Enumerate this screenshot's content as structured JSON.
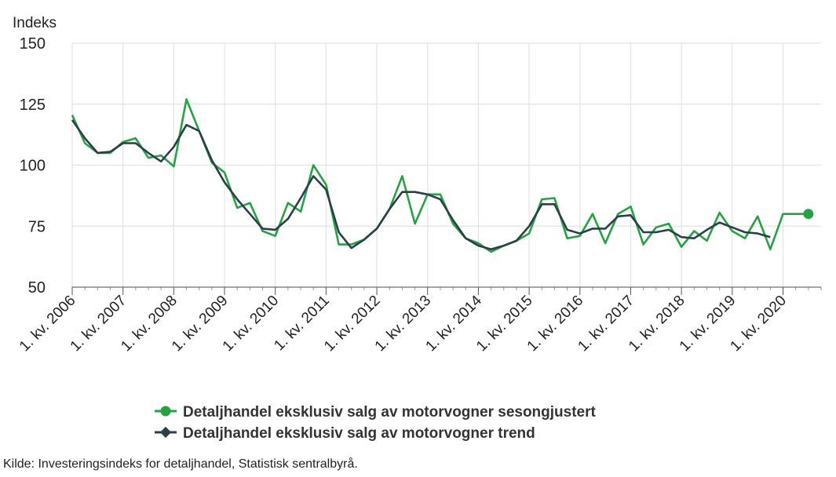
{
  "chart_data": {
    "type": "line",
    "ylabel": "Indeks",
    "ylim": [
      50,
      150
    ],
    "yticks": [
      "50",
      "75",
      "100",
      "125",
      "150"
    ],
    "xlim": [
      2006.0,
      2020.75
    ],
    "xticks": [
      "1. kv. 2006",
      "1. kv. 2007",
      "1. kv. 2008",
      "1. kv. 2009",
      "1. kv. 2010",
      "1. kv. 2011",
      "1. kv. 2012",
      "1. kv. 2013",
      "1. kv. 2014",
      "1. kv. 2015",
      "1. kv. 2016",
      "1. kv. 2017",
      "1. kv. 2018",
      "1. kv. 2019",
      "1. kv. 2020"
    ],
    "grid": true,
    "legend_position": "bottom",
    "series": [
      {
        "name": "Detaljhandel eksklusiv salg av motorvogner sesongjustert",
        "color": "#27a243",
        "marker_last": true,
        "x": [
          2006.0,
          2006.25,
          2006.5,
          2006.75,
          2007.0,
          2007.25,
          2007.5,
          2007.75,
          2008.0,
          2008.25,
          2008.5,
          2008.75,
          2009.0,
          2009.25,
          2009.5,
          2009.75,
          2010.0,
          2010.25,
          2010.5,
          2010.75,
          2011.0,
          2011.25,
          2011.5,
          2011.75,
          2012.0,
          2012.25,
          2012.5,
          2012.75,
          2013.0,
          2013.25,
          2013.5,
          2013.75,
          2014.0,
          2014.25,
          2014.5,
          2014.75,
          2015.0,
          2015.25,
          2015.5,
          2015.75,
          2016.0,
          2016.25,
          2016.5,
          2016.75,
          2017.0,
          2017.25,
          2017.5,
          2017.75,
          2018.0,
          2018.25,
          2018.5,
          2018.75,
          2019.0,
          2019.25,
          2019.5,
          2019.75,
          2020.0,
          2020.25,
          2020.5
        ],
        "values": [
          120.5,
          109,
          105,
          105,
          109.5,
          111,
          103,
          104,
          99.5,
          127,
          114,
          101,
          97,
          82.5,
          84.5,
          73,
          71,
          84.5,
          81,
          100,
          92,
          67.5,
          67.5,
          69.5,
          74,
          82,
          95.5,
          76,
          88,
          88,
          76,
          70,
          68,
          64.5,
          67,
          69,
          72,
          86,
          86.5,
          70,
          71,
          80,
          68,
          80,
          83,
          67.5,
          74.5,
          76,
          66.5,
          73,
          69,
          80.5,
          73,
          70,
          79,
          65.5,
          80,
          80,
          80
        ]
      },
      {
        "name": "Detaljhandel eksklusiv salg av motorvogner trend",
        "color": "#2b3f4a",
        "marker_last": false,
        "x": [
          2006.0,
          2006.25,
          2006.5,
          2006.75,
          2007.0,
          2007.25,
          2007.5,
          2007.75,
          2008.0,
          2008.25,
          2008.5,
          2008.75,
          2009.0,
          2009.25,
          2009.5,
          2009.75,
          2010.0,
          2010.25,
          2010.5,
          2010.75,
          2011.0,
          2011.25,
          2011.5,
          2011.75,
          2012.0,
          2012.25,
          2012.5,
          2012.75,
          2013.0,
          2013.25,
          2013.5,
          2013.75,
          2014.0,
          2014.25,
          2014.5,
          2014.75,
          2015.0,
          2015.25,
          2015.5,
          2015.75,
          2016.0,
          2016.25,
          2016.5,
          2016.75,
          2017.0,
          2017.25,
          2017.5,
          2017.75,
          2018.0,
          2018.25,
          2018.5,
          2018.75,
          2019.0,
          2019.25,
          2019.5,
          2019.75
        ],
        "values": [
          118.5,
          111,
          105,
          105.5,
          109,
          109,
          105,
          101.5,
          107.5,
          116.5,
          114,
          102,
          93,
          86,
          80,
          74,
          73.5,
          78,
          86.5,
          95.5,
          90,
          72.5,
          66,
          69.5,
          74,
          82,
          89,
          89,
          88,
          86,
          77.5,
          70,
          67,
          65.5,
          67,
          69,
          75,
          84,
          84,
          73.5,
          72,
          74,
          74,
          79,
          79.5,
          72.5,
          72.5,
          73.5,
          70.5,
          70,
          73.5,
          76.5,
          74.5,
          72.5,
          72,
          70.5
        ]
      }
    ]
  },
  "source": "Kilde: Investeringsindeks for detaljhandel, Statistisk sentralbyrå."
}
